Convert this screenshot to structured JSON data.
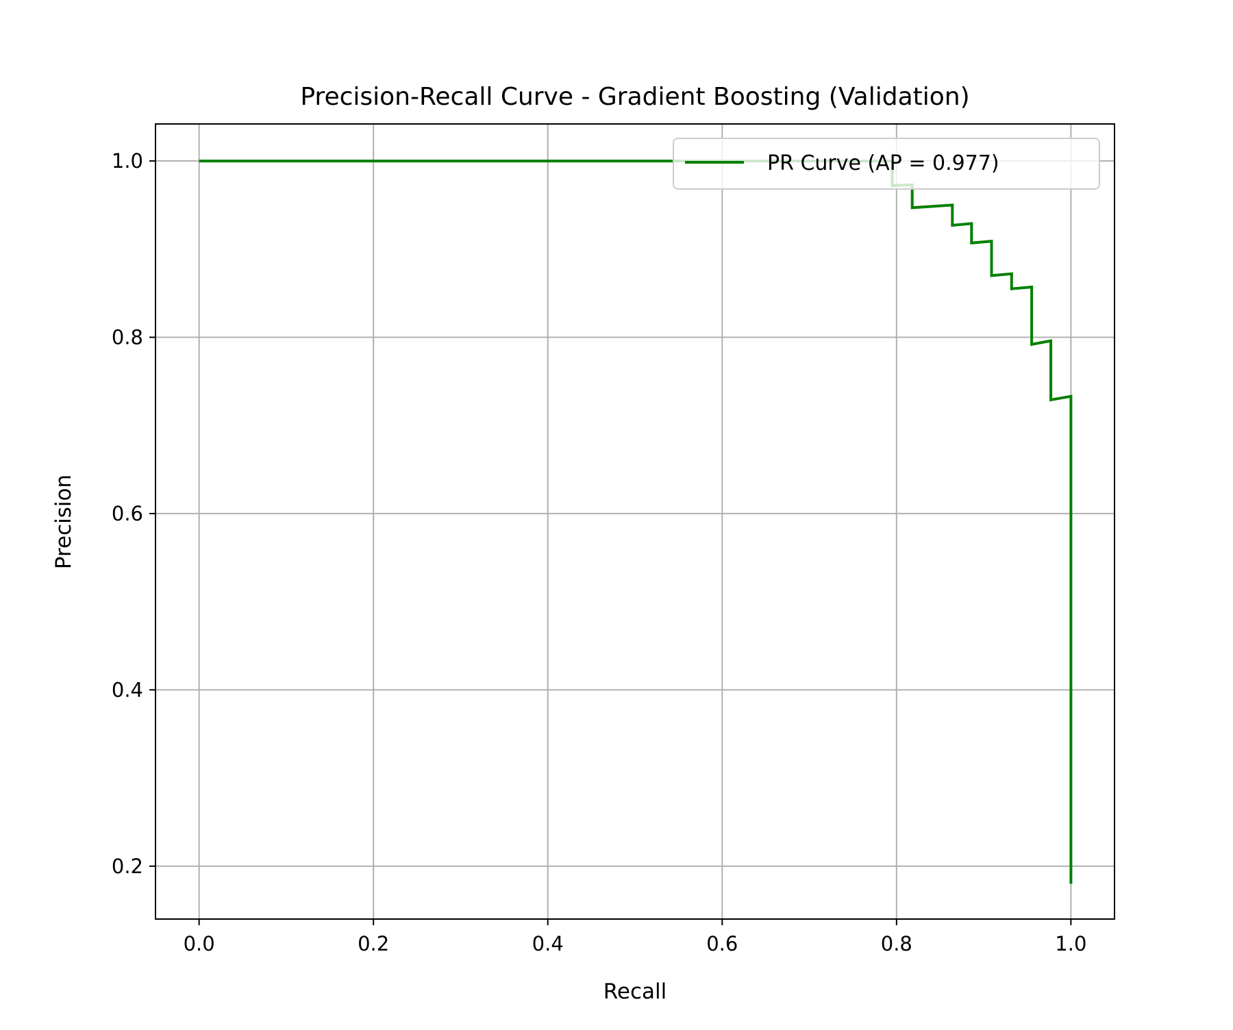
{
  "chart_data": {
    "type": "line",
    "title": "Precision-Recall Curve - Gradient Boosting (Validation)",
    "xlabel": "Recall",
    "ylabel": "Precision",
    "xlim": [
      -0.05,
      1.05
    ],
    "ylim": [
      0.14,
      1.042
    ],
    "xticks": [
      0.0,
      0.2,
      0.4,
      0.6,
      0.8,
      1.0
    ],
    "yticks": [
      0.2,
      0.4,
      0.6,
      0.8,
      1.0
    ],
    "xtick_labels": [
      "0.0",
      "0.2",
      "0.4",
      "0.6",
      "0.8",
      "1.0"
    ],
    "ytick_labels": [
      "0.2",
      "0.4",
      "0.6",
      "0.8",
      "1.0"
    ],
    "grid": true,
    "legend": {
      "position": "top-right",
      "entries": [
        "PR Curve (AP = 0.977)"
      ]
    },
    "series": [
      {
        "name": "PR Curve (AP = 0.977)",
        "color": "#008000",
        "points": [
          [
            0.0,
            1.0
          ],
          [
            0.795,
            1.0
          ],
          [
            0.795,
            0.972
          ],
          [
            0.818,
            0.973
          ],
          [
            0.818,
            0.947
          ],
          [
            0.864,
            0.95
          ],
          [
            0.864,
            0.927
          ],
          [
            0.886,
            0.929
          ],
          [
            0.886,
            0.907
          ],
          [
            0.909,
            0.909
          ],
          [
            0.909,
            0.87
          ],
          [
            0.932,
            0.872
          ],
          [
            0.932,
            0.855
          ],
          [
            0.955,
            0.857
          ],
          [
            0.955,
            0.792
          ],
          [
            0.977,
            0.796
          ],
          [
            0.977,
            0.729
          ],
          [
            1.0,
            0.733
          ],
          [
            1.0,
            0.18
          ]
        ]
      }
    ]
  }
}
